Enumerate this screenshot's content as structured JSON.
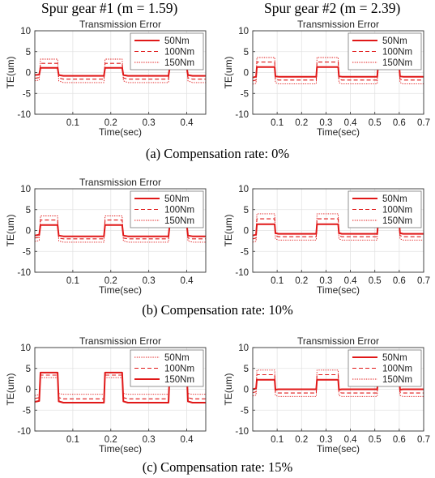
{
  "column_headers": [
    "Spur gear #1 (m = 1.59)",
    "Spur gear #2 (m = 2.39)"
  ],
  "captions": [
    "(a) Compensation rate: 0%",
    "(b) Compensation rate: 10%",
    "(c) Compensation rate: 15%"
  ],
  "colors": {
    "line": "#e01818",
    "axis": "#333333",
    "grid": "#e3e3e3"
  },
  "chart_data": [
    {
      "type": "line",
      "row": 0,
      "col": 0,
      "title": "Transmission Error",
      "xlabel": "Time(sec)",
      "ylabel": "TE(um)",
      "xlim": [
        0,
        0.45
      ],
      "ylim": [
        -10,
        10
      ],
      "xticks": [
        "0.1",
        "0.2",
        "0.3",
        "0.4"
      ],
      "yticks": [
        "-10",
        "-5",
        "0",
        "5",
        "10"
      ],
      "x": [
        0,
        0.0115,
        0.015,
        0.06,
        0.063,
        0.075,
        0.182,
        0.185,
        0.23,
        0.233,
        0.245,
        0.352,
        0.355,
        0.4,
        0.403,
        0.415,
        0.45
      ],
      "legend": "top-right",
      "grid": true,
      "series": [
        {
          "name": "50Nm",
          "style": "solid",
          "values": [
            -0.6,
            -0.5,
            1.1,
            1.1,
            -0.6,
            -0.8,
            -0.8,
            1.1,
            1.1,
            -0.6,
            -0.8,
            -0.8,
            1.1,
            1.1,
            -0.6,
            -0.8,
            -0.8
          ]
        },
        {
          "name": "100Nm",
          "style": "dashed",
          "values": [
            -1.4,
            -1.2,
            2.2,
            2.2,
            -1.3,
            -1.6,
            -1.6,
            2.2,
            2.2,
            -1.3,
            -1.6,
            -1.6,
            2.2,
            2.2,
            -1.3,
            -1.6,
            -1.6
          ]
        },
        {
          "name": "150Nm",
          "style": "dotted",
          "values": [
            -2.0,
            -1.8,
            3.2,
            3.2,
            -2.0,
            -2.4,
            -2.4,
            3.2,
            3.2,
            -2.0,
            -2.4,
            -2.4,
            3.2,
            3.2,
            -2.0,
            -2.4,
            -2.4
          ]
        }
      ]
    },
    {
      "type": "line",
      "row": 0,
      "col": 1,
      "title": "Transmission Error",
      "xlabel": "Time(sec)",
      "ylabel": "TE(um)",
      "xlim": [
        0,
        0.7
      ],
      "ylim": [
        -10,
        10
      ],
      "xticks": [
        "0.1",
        "0.2",
        "0.3",
        "0.4",
        "0.5",
        "0.6",
        "0.7"
      ],
      "yticks": [
        "-10",
        "-5",
        "0",
        "5",
        "10"
      ],
      "x": [
        0,
        0.0135,
        0.017,
        0.09,
        0.093,
        0.105,
        0.26,
        0.263,
        0.35,
        0.353,
        0.365,
        0.51,
        0.513,
        0.6,
        0.603,
        0.615,
        0.7
      ],
      "legend": "top-right",
      "grid": true,
      "series": [
        {
          "name": "50Nm",
          "style": "solid",
          "values": [
            -1.2,
            -1.0,
            1.3,
            1.3,
            -0.9,
            -1.0,
            -1.0,
            1.3,
            1.3,
            -0.9,
            -1.0,
            -1.0,
            1.3,
            1.3,
            -0.9,
            -1.0,
            -1.0
          ]
        },
        {
          "name": "100Nm",
          "style": "dashed",
          "values": [
            -2.0,
            -1.8,
            2.5,
            2.5,
            -1.6,
            -1.8,
            -1.8,
            2.5,
            2.5,
            -1.6,
            -1.8,
            -1.8,
            2.5,
            2.5,
            -1.6,
            -1.8,
            -1.8
          ]
        },
        {
          "name": "150Nm",
          "style": "dotted",
          "values": [
            -2.8,
            -2.6,
            3.6,
            3.6,
            -2.4,
            -2.7,
            -2.7,
            3.6,
            3.6,
            -2.4,
            -2.7,
            -2.7,
            3.6,
            3.6,
            -2.4,
            -2.7,
            -2.7
          ]
        }
      ]
    },
    {
      "type": "line",
      "row": 1,
      "col": 0,
      "title": "Transmission Error",
      "xlabel": "Time(sec)",
      "ylabel": "TE(um)",
      "xlim": [
        0,
        0.45
      ],
      "ylim": [
        -10,
        10
      ],
      "xticks": [
        "0.1",
        "0.2",
        "0.3",
        "0.4"
      ],
      "yticks": [
        "-10",
        "-5",
        "0",
        "5",
        "10"
      ],
      "x": [
        0,
        0.0115,
        0.015,
        0.06,
        0.063,
        0.075,
        0.182,
        0.185,
        0.23,
        0.233,
        0.245,
        0.352,
        0.355,
        0.4,
        0.403,
        0.415,
        0.45
      ],
      "legend": "top-right",
      "grid": true,
      "series": [
        {
          "name": "50Nm",
          "style": "solid",
          "values": [
            -1.2,
            -1.0,
            1.3,
            1.3,
            -1.2,
            -1.4,
            -1.4,
            1.3,
            1.3,
            -1.2,
            -1.4,
            -1.4,
            1.3,
            1.3,
            -1.2,
            -1.4,
            -1.4
          ]
        },
        {
          "name": "100Nm",
          "style": "dashed",
          "values": [
            -1.8,
            -1.6,
            2.5,
            2.5,
            -1.8,
            -2.0,
            -2.0,
            2.5,
            2.5,
            -1.8,
            -2.0,
            -2.0,
            2.5,
            2.5,
            -1.8,
            -2.0,
            -2.0
          ]
        },
        {
          "name": "150Nm",
          "style": "dotted",
          "values": [
            -2.6,
            -2.4,
            3.5,
            3.5,
            -2.5,
            -2.8,
            -2.8,
            3.5,
            3.5,
            -2.5,
            -2.8,
            -2.8,
            3.5,
            3.5,
            -2.5,
            -2.8,
            -2.8
          ]
        }
      ]
    },
    {
      "type": "line",
      "row": 1,
      "col": 1,
      "title": "",
      "xlabel": "Time(sec)",
      "ylabel": "TE(um)",
      "xlim": [
        0,
        0.7
      ],
      "ylim": [
        -10,
        10
      ],
      "xticks": [
        "0.1",
        "0.2",
        "0.3",
        "0.4",
        "0.5",
        "0.6",
        "0.7"
      ],
      "yticks": [
        "-10",
        "-5",
        "0",
        "5",
        "10"
      ],
      "x": [
        0,
        0.0135,
        0.017,
        0.09,
        0.093,
        0.105,
        0.26,
        0.263,
        0.35,
        0.353,
        0.365,
        0.51,
        0.513,
        0.6,
        0.603,
        0.615,
        0.7
      ],
      "legend": "top-right",
      "grid": true,
      "series": [
        {
          "name": "50Nm",
          "style": "solid",
          "values": [
            -1.2,
            -1.0,
            1.5,
            1.5,
            -0.6,
            -0.8,
            -0.8,
            1.5,
            1.5,
            -0.6,
            -0.8,
            -0.8,
            1.5,
            1.5,
            -0.6,
            -0.8,
            -0.8
          ]
        },
        {
          "name": "100Nm",
          "style": "dashed",
          "values": [
            -2.0,
            -1.8,
            2.8,
            2.8,
            -1.2,
            -1.5,
            -1.5,
            2.8,
            2.8,
            -1.2,
            -1.5,
            -1.5,
            2.8,
            2.8,
            -1.2,
            -1.5,
            -1.5
          ]
        },
        {
          "name": "150Nm",
          "style": "dotted",
          "values": [
            -2.8,
            -2.6,
            4.0,
            4.0,
            -2.0,
            -2.3,
            -2.3,
            4.0,
            4.0,
            -2.0,
            -2.3,
            -2.3,
            4.0,
            4.0,
            -2.0,
            -2.3,
            -2.3
          ]
        }
      ]
    },
    {
      "type": "line",
      "row": 2,
      "col": 0,
      "title": "Transmission Error",
      "xlabel": "Time(sec)",
      "ylabel": "TE(um)",
      "xlim": [
        0,
        0.45
      ],
      "ylim": [
        -10,
        10
      ],
      "xticks": [
        "0.1",
        "0.2",
        "0.3",
        "0.4"
      ],
      "yticks": [
        "-10",
        "-5",
        "0",
        "5",
        "10"
      ],
      "x": [
        0,
        0.0115,
        0.015,
        0.06,
        0.063,
        0.075,
        0.182,
        0.185,
        0.23,
        0.233,
        0.245,
        0.352,
        0.355,
        0.4,
        0.403,
        0.415,
        0.45
      ],
      "legend": "top-right",
      "grid": true,
      "series": [
        {
          "name": "50Nm",
          "style": "dotted",
          "values": [
            -1.5,
            -1.3,
            2.8,
            2.8,
            -1.0,
            -1.2,
            -1.2,
            2.8,
            2.8,
            -1.0,
            -1.2,
            -1.2,
            2.8,
            2.8,
            -1.0,
            -1.2,
            -1.2
          ]
        },
        {
          "name": "100Nm",
          "style": "dashed",
          "values": [
            -2.2,
            -2.0,
            3.4,
            3.4,
            -2.0,
            -2.3,
            -2.3,
            3.4,
            3.4,
            -2.0,
            -2.3,
            -2.3,
            3.4,
            3.4,
            -2.0,
            -2.3,
            -2.3
          ]
        },
        {
          "name": "150Nm",
          "style": "solid",
          "values": [
            -3.0,
            -2.8,
            4.0,
            4.0,
            -2.9,
            -3.2,
            -3.2,
            4.0,
            4.0,
            -2.9,
            -3.2,
            -3.2,
            4.0,
            4.0,
            -2.9,
            -3.2,
            -3.2
          ]
        }
      ]
    },
    {
      "type": "line",
      "row": 2,
      "col": 1,
      "title": "Transmission Error",
      "xlabel": "Time(sec)",
      "ylabel": "TE(um)",
      "xlim": [
        0,
        0.7
      ],
      "ylim": [
        -10,
        10
      ],
      "xticks": [
        "0.1",
        "0.2",
        "0.3",
        "0.4",
        "0.5",
        "0.6",
        "0.7"
      ],
      "yticks": [
        "-10",
        "-5",
        "0",
        "5",
        "10"
      ],
      "x": [
        0,
        0.0135,
        0.017,
        0.09,
        0.093,
        0.105,
        0.26,
        0.263,
        0.35,
        0.353,
        0.365,
        0.51,
        0.513,
        0.6,
        0.603,
        0.615,
        0.7
      ],
      "legend": "top-right",
      "grid": true,
      "series": [
        {
          "name": "50Nm",
          "style": "solid",
          "values": [
            0.0,
            0.2,
            2.3,
            2.3,
            -0.1,
            0.0,
            0.0,
            2.3,
            2.3,
            -0.1,
            0.0,
            0.0,
            2.3,
            2.3,
            -0.1,
            0.0,
            0.0
          ]
        },
        {
          "name": "100Nm",
          "style": "dashed",
          "values": [
            -0.8,
            -0.6,
            3.5,
            3.5,
            -0.7,
            -0.9,
            -0.9,
            3.5,
            3.5,
            -0.7,
            -0.9,
            -0.9,
            3.5,
            3.5,
            -0.7,
            -0.9,
            -0.9
          ]
        },
        {
          "name": "150Nm",
          "style": "dotted",
          "values": [
            -1.6,
            -1.4,
            4.6,
            4.6,
            -1.5,
            -1.7,
            -1.7,
            4.6,
            4.6,
            -1.5,
            -1.7,
            -1.7,
            4.6,
            4.6,
            -1.5,
            -1.7,
            -1.7
          ]
        }
      ]
    }
  ]
}
